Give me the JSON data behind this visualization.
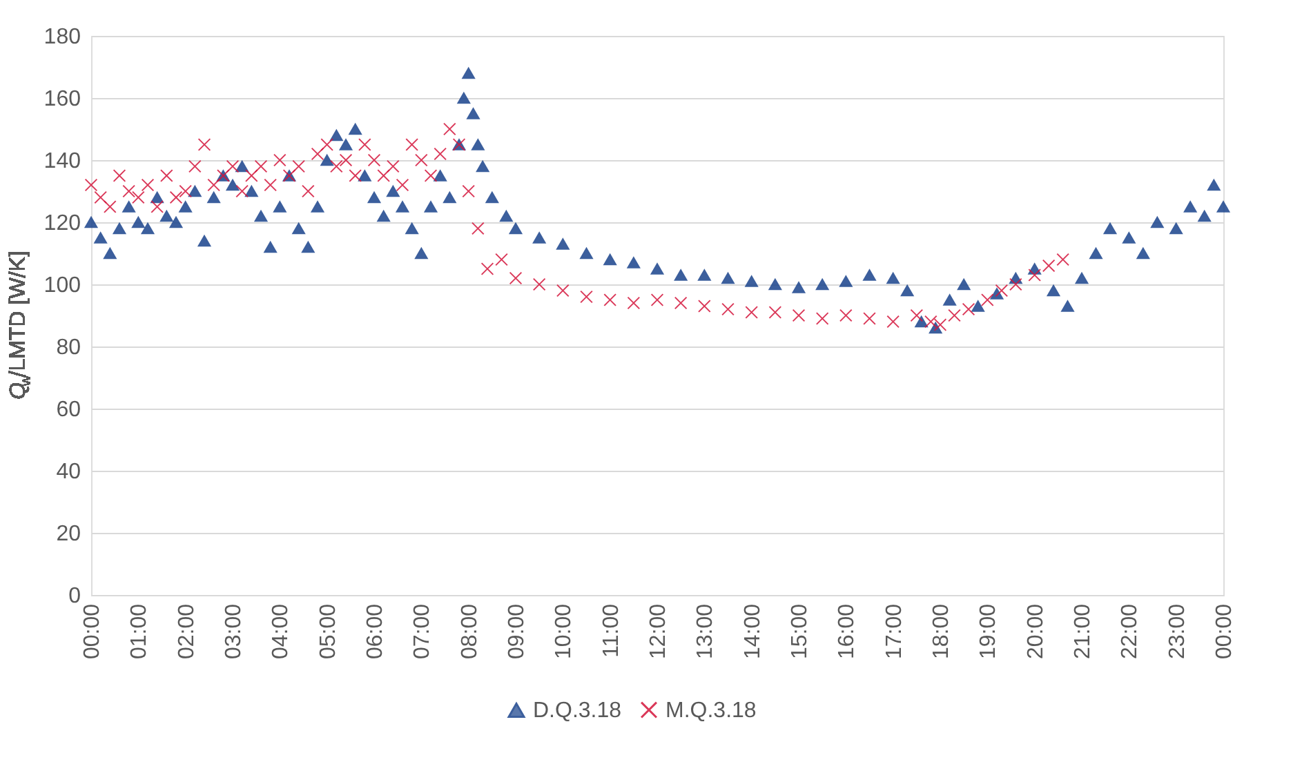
{
  "chart_data": {
    "type": "scatter",
    "ylabel": "Q$_{w}$/LMTD [W/K]",
    "xlim": [
      0,
      24
    ],
    "ylim": [
      0,
      180
    ],
    "yticks": [
      0,
      20,
      40,
      60,
      80,
      100,
      120,
      140,
      160,
      180
    ],
    "xticks": [
      {
        "value": 0,
        "label": "00:00"
      },
      {
        "value": 1,
        "label": "01:00"
      },
      {
        "value": 2,
        "label": "02:00"
      },
      {
        "value": 3,
        "label": "03:00"
      },
      {
        "value": 4,
        "label": "04:00"
      },
      {
        "value": 5,
        "label": "05:00"
      },
      {
        "value": 6,
        "label": "06:00"
      },
      {
        "value": 7,
        "label": "07:00"
      },
      {
        "value": 8,
        "label": "08:00"
      },
      {
        "value": 9,
        "label": "09:00"
      },
      {
        "value": 10,
        "label": "10:00"
      },
      {
        "value": 11,
        "label": "11:00"
      },
      {
        "value": 12,
        "label": "12:00"
      },
      {
        "value": 13,
        "label": "13:00"
      },
      {
        "value": 14,
        "label": "14:00"
      },
      {
        "value": 15,
        "label": "15:00"
      },
      {
        "value": 16,
        "label": "16:00"
      },
      {
        "value": 17,
        "label": "17:00"
      },
      {
        "value": 18,
        "label": "18:00"
      },
      {
        "value": 19,
        "label": "19:00"
      },
      {
        "value": 20,
        "label": "20:00"
      },
      {
        "value": 21,
        "label": "21:00"
      },
      {
        "value": 22,
        "label": "22:00"
      },
      {
        "value": 23,
        "label": "23:00"
      },
      {
        "value": 24,
        "label": "00:00"
      }
    ],
    "grid": "y",
    "legend": "bottom",
    "series": [
      {
        "name": "D.Q.3.18",
        "color": "#1b448c",
        "marker": "triangle",
        "x": [
          0.0,
          0.2,
          0.4,
          0.6,
          0.8,
          1.0,
          1.2,
          1.4,
          1.6,
          1.8,
          2.0,
          2.2,
          2.4,
          2.6,
          2.8,
          3.0,
          3.2,
          3.4,
          3.6,
          3.8,
          4.0,
          4.2,
          4.4,
          4.6,
          4.8,
          5.0,
          5.2,
          5.4,
          5.6,
          5.8,
          6.0,
          6.2,
          6.4,
          6.6,
          6.8,
          7.0,
          7.2,
          7.4,
          7.6,
          7.8,
          7.9,
          8.0,
          8.1,
          8.2,
          8.3,
          8.5,
          8.8,
          9.0,
          9.5,
          10.0,
          10.5,
          11.0,
          11.5,
          12.0,
          12.5,
          13.0,
          13.5,
          14.0,
          14.5,
          15.0,
          15.5,
          16.0,
          16.5,
          17.0,
          17.3,
          17.6,
          17.9,
          18.2,
          18.5,
          18.8,
          19.2,
          19.6,
          20.0,
          20.4,
          20.7,
          21.0,
          21.3,
          21.6,
          22.0,
          22.3,
          22.6,
          23.0,
          23.3,
          23.6,
          23.8,
          24.0
        ],
        "values": [
          120,
          115,
          110,
          118,
          125,
          120,
          118,
          128,
          122,
          120,
          125,
          130,
          114,
          128,
          135,
          132,
          138,
          130,
          122,
          112,
          125,
          135,
          118,
          112,
          125,
          140,
          148,
          145,
          150,
          135,
          128,
          122,
          130,
          125,
          118,
          110,
          125,
          135,
          128,
          145,
          160,
          168,
          155,
          145,
          138,
          128,
          122,
          118,
          115,
          113,
          110,
          108,
          107,
          105,
          103,
          103,
          102,
          101,
          100,
          99,
          100,
          101,
          103,
          102,
          98,
          88,
          86,
          95,
          100,
          93,
          97,
          102,
          105,
          98,
          93,
          102,
          110,
          118,
          115,
          110,
          120,
          118,
          125,
          122,
          132,
          125
        ]
      },
      {
        "name": "M.Q.3.18",
        "color": "#d4163c",
        "marker": "cross",
        "x": [
          0.0,
          0.2,
          0.4,
          0.6,
          0.8,
          1.0,
          1.2,
          1.4,
          1.6,
          1.8,
          2.0,
          2.2,
          2.4,
          2.6,
          2.8,
          3.0,
          3.2,
          3.4,
          3.6,
          3.8,
          4.0,
          4.2,
          4.4,
          4.6,
          4.8,
          5.0,
          5.2,
          5.4,
          5.6,
          5.8,
          6.0,
          6.2,
          6.4,
          6.6,
          6.8,
          7.0,
          7.2,
          7.4,
          7.6,
          7.8,
          8.0,
          8.2,
          8.4,
          8.7,
          9.0,
          9.5,
          10.0,
          10.5,
          11.0,
          11.5,
          12.0,
          12.5,
          13.0,
          13.5,
          14.0,
          14.5,
          15.0,
          15.5,
          16.0,
          16.5,
          17.0,
          17.5,
          17.8,
          18.0,
          18.3,
          18.6,
          19.0,
          19.3,
          19.6,
          20.0,
          20.3,
          20.6
        ],
        "values": [
          132,
          128,
          125,
          135,
          130,
          128,
          132,
          125,
          135,
          128,
          130,
          138,
          145,
          132,
          135,
          138,
          130,
          135,
          138,
          132,
          140,
          135,
          138,
          130,
          142,
          145,
          138,
          140,
          135,
          145,
          140,
          135,
          138,
          132,
          145,
          140,
          135,
          142,
          150,
          145,
          130,
          118,
          105,
          108,
          102,
          100,
          98,
          96,
          95,
          94,
          95,
          94,
          93,
          92,
          91,
          91,
          90,
          89,
          90,
          89,
          88,
          90,
          88,
          87,
          90,
          92,
          95,
          98,
          100,
          103,
          106,
          108
        ]
      }
    ]
  }
}
